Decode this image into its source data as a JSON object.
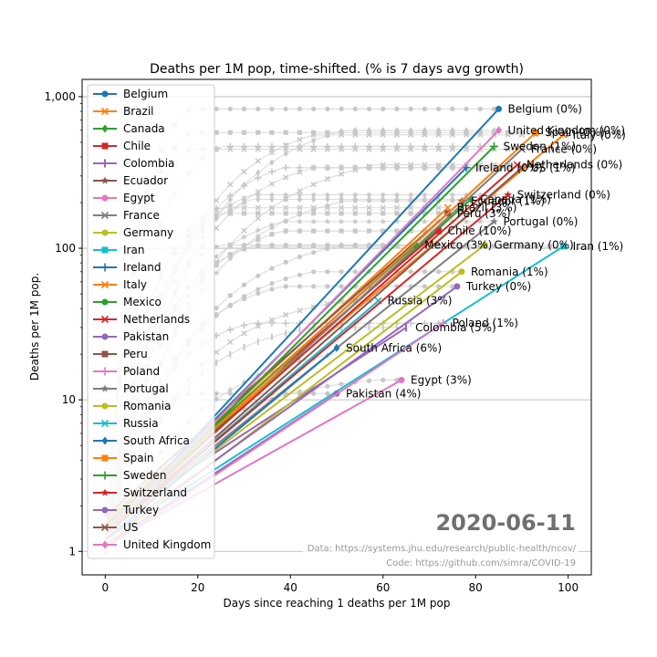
{
  "chart_data": {
    "type": "line",
    "title": "Deaths per 1M pop, time-shifted. (% is 7 days avg growth)",
    "xlabel": "Days since reaching 1 deaths per 1M pop",
    "ylabel": "Deaths per 1M pop.",
    "xlim": [
      -5,
      105
    ],
    "ylim": [
      0.7,
      1300
    ],
    "yscale": "log",
    "xticks": [
      0,
      20,
      40,
      60,
      80,
      100
    ],
    "yticks": [
      1,
      10,
      100,
      1000
    ],
    "ytick_labels": [
      "1",
      "10",
      "100",
      "1,000"
    ],
    "grid": "horizontal",
    "legend_position": "top-left",
    "date_label": "2020-06-11",
    "source_note": "Data: https://systems.jhu.edu/research/public-health/ncov/",
    "code_note": "Code: https://github.com/simra/COVID-19",
    "series": [
      {
        "name": "Belgium",
        "color": "#1f77b4",
        "marker": "o",
        "x": [
          0,
          85
        ],
        "y": [
          1.3,
          830
        ],
        "label": "Belgium (0%)"
      },
      {
        "name": "Brazil",
        "color": "#ff7f0e",
        "marker": "x",
        "x": [
          0,
          74
        ],
        "y": [
          1.5,
          185
        ],
        "label": "Brazil (3%)"
      },
      {
        "name": "Canada",
        "color": "#2ca02c",
        "marker": "D",
        "x": [
          0,
          79
        ],
        "y": [
          1.4,
          210
        ],
        "label": "Canada (1%)"
      },
      {
        "name": "Chile",
        "color": "#d62728",
        "marker": "s",
        "x": [
          0,
          72
        ],
        "y": [
          1.6,
          130
        ],
        "label": "Chile (10%)"
      },
      {
        "name": "Colombia",
        "color": "#9467bd",
        "marker": "|",
        "x": [
          0,
          65
        ],
        "y": [
          1.5,
          30
        ],
        "label": "Colombia (5%)"
      },
      {
        "name": "Ecuador",
        "color": "#8c564b",
        "marker": "*",
        "x": [
          0,
          77
        ],
        "y": [
          1.7,
          205
        ],
        "label": "Ecuador (1%)"
      },
      {
        "name": "Egypt",
        "color": "#e377c2",
        "marker": "o",
        "x": [
          0,
          64
        ],
        "y": [
          1.1,
          13.5
        ],
        "label": "Egypt (3%)"
      },
      {
        "name": "France",
        "color": "#7f7f7f",
        "marker": "x",
        "x": [
          0,
          90
        ],
        "y": [
          1.3,
          450
        ],
        "label": "France (0%)"
      },
      {
        "name": "Germany",
        "color": "#bcbd22",
        "marker": "o",
        "x": [
          0,
          82
        ],
        "y": [
          1.3,
          105
        ],
        "label": "Germany (0%)"
      },
      {
        "name": "Iran",
        "color": "#17becf",
        "marker": "s",
        "x": [
          0,
          99
        ],
        "y": [
          1.2,
          103
        ],
        "label": "Iran (1%)"
      },
      {
        "name": "Ireland",
        "color": "#1f77b4",
        "marker": "+",
        "x": [
          0,
          78
        ],
        "y": [
          1.4,
          340
        ],
        "label": "Ireland (0%)"
      },
      {
        "name": "Italy",
        "color": "#ff7f0e",
        "marker": "x",
        "x": [
          0,
          99
        ],
        "y": [
          1.6,
          560
        ],
        "label": "Italy (0%)"
      },
      {
        "name": "Mexico",
        "color": "#2ca02c",
        "marker": "o",
        "x": [
          0,
          67
        ],
        "y": [
          1.5,
          105
        ],
        "label": "Mexico (3%)"
      },
      {
        "name": "Netherlands",
        "color": "#d62728",
        "marker": "x",
        "x": [
          0,
          89
        ],
        "y": [
          1.4,
          355
        ],
        "label": "Netherlands (0%)"
      },
      {
        "name": "Pakistan",
        "color": "#9467bd",
        "marker": "o",
        "x": [
          0,
          50
        ],
        "y": [
          1.1,
          11
        ],
        "label": "Pakistan (4%)"
      },
      {
        "name": "Peru",
        "color": "#8c564b",
        "marker": "s",
        "x": [
          0,
          74
        ],
        "y": [
          1.4,
          170
        ],
        "label": "Peru (3%)"
      },
      {
        "name": "Poland",
        "color": "#e377c2",
        "marker": "+",
        "x": [
          0,
          73
        ],
        "y": [
          1.05,
          32
        ],
        "label": "Poland (1%)"
      },
      {
        "name": "Portugal",
        "color": "#7f7f7f",
        "marker": "*",
        "x": [
          0,
          84
        ],
        "y": [
          1.3,
          150
        ],
        "label": "Portugal (0%)"
      },
      {
        "name": "Romania",
        "color": "#bcbd22",
        "marker": "o",
        "x": [
          0,
          77
        ],
        "y": [
          1.1,
          70
        ],
        "label": "Romania (1%)"
      },
      {
        "name": "Russia",
        "color": "#17becf",
        "marker": "x",
        "x": [
          0,
          59
        ],
        "y": [
          1.3,
          45
        ],
        "label": "Russia (3%)"
      },
      {
        "name": "South Africa",
        "color": "#1f77b4",
        "marker": "D",
        "x": [
          0,
          50
        ],
        "y": [
          1.2,
          22
        ],
        "label": "South Africa (6%)"
      },
      {
        "name": "Spain",
        "color": "#ff7f0e",
        "marker": "s",
        "x": [
          0,
          93
        ],
        "y": [
          1.4,
          580
        ],
        "label": "Spain (0%)"
      },
      {
        "name": "Sweden",
        "color": "#2ca02c",
        "marker": "+",
        "x": [
          0,
          84
        ],
        "y": [
          1.3,
          470
        ],
        "label": "Sweden (1%)"
      },
      {
        "name": "Switzerland",
        "color": "#d62728",
        "marker": "*",
        "x": [
          0,
          87
        ],
        "y": [
          1.3,
          225
        ],
        "label": "Switzerland (0%)"
      },
      {
        "name": "Turkey",
        "color": "#9467bd",
        "marker": "o",
        "x": [
          0,
          76
        ],
        "y": [
          1.2,
          56
        ],
        "label": "Turkey (0%)"
      },
      {
        "name": "US",
        "color": "#8c564b",
        "marker": "x",
        "x": [
          0,
          90
        ],
        "y": [
          1.3,
          340
        ],
        "label": "US (1%)"
      },
      {
        "name": "United Kingdom",
        "color": "#e377c2",
        "marker": "D",
        "x": [
          0,
          85
        ],
        "y": [
          1.3,
          600
        ],
        "label": "United Kingdom (0%)"
      }
    ]
  }
}
